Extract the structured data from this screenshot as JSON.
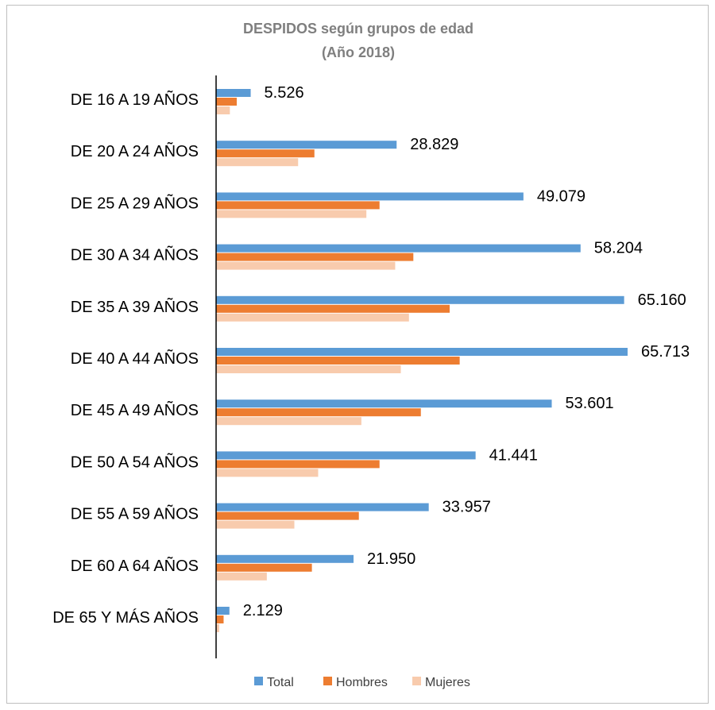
{
  "chart_data": {
    "type": "bar",
    "orientation": "horizontal",
    "title": "DESPIDOS  según grupos de edad",
    "subtitle": "(Año 2018)",
    "categories": [
      "DE 16 A 19 AÑOS",
      "DE 20 A 24 AÑOS",
      "DE 25 A 29 AÑOS",
      "DE 30 A 34 AÑOS",
      "DE 35 A 39 AÑOS",
      "DE 40 A 44 AÑOS",
      "DE 45 A 49 AÑOS",
      "DE 50 A 54 AÑOS",
      "DE 55 A 59 AÑOS",
      "DE 60 A 64 AÑOS",
      "DE 65 Y MÁS AÑOS"
    ],
    "series": [
      {
        "name": "Total",
        "color": "#5b9bd5",
        "values": [
          5526,
          28829,
          49079,
          58204,
          65160,
          65713,
          53601,
          41441,
          33957,
          21950,
          2129
        ],
        "labels": [
          "5.526",
          "28.829",
          "49.079",
          "58.204",
          "65.160",
          "65.713",
          "53.601",
          "41.441",
          "33.957",
          "21.950",
          "2.129"
        ]
      },
      {
        "name": "Hombres",
        "color": "#ed7d31",
        "values": [
          3300,
          15700,
          26100,
          31500,
          37300,
          38900,
          32700,
          26100,
          22800,
          15300,
          1200
        ]
      },
      {
        "name": "Mujeres",
        "color": "#f8cbad",
        "values": [
          2200,
          13100,
          24000,
          28600,
          30800,
          29500,
          23200,
          16300,
          12500,
          8100,
          500
        ]
      }
    ],
    "xlim": [
      0,
      70000
    ],
    "grid": false,
    "legend": "bottom"
  }
}
